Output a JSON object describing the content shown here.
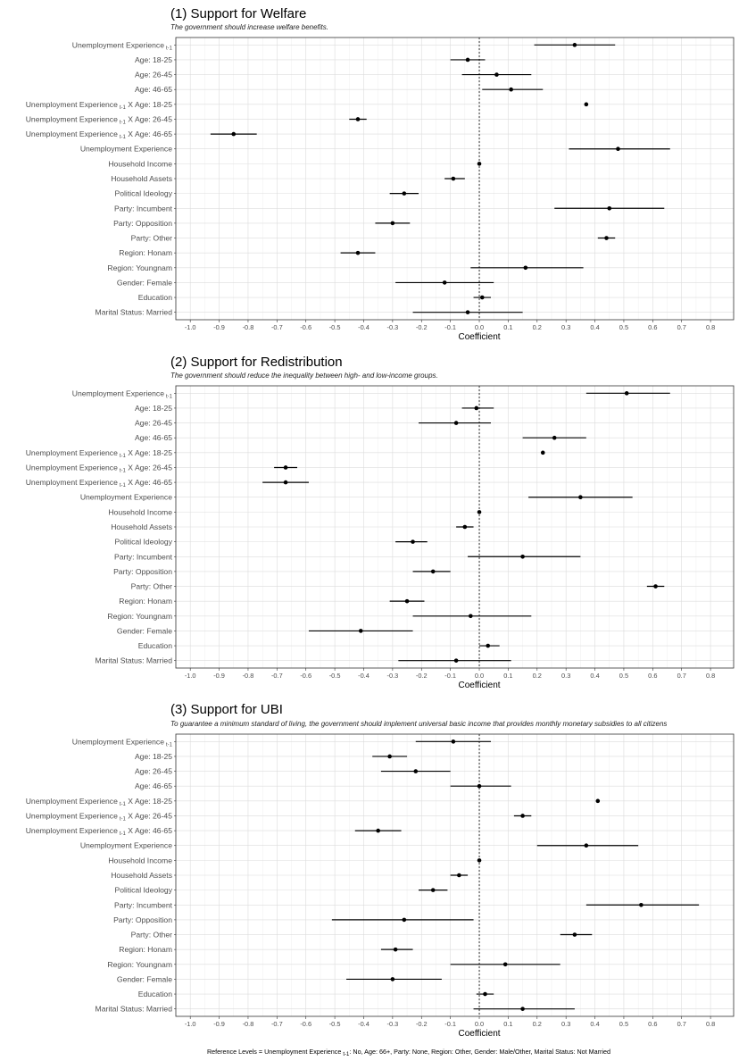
{
  "chart_data": [
    {
      "type": "scatter",
      "title": "(1) Support for Welfare",
      "subtitle": "The government should increase welfare benefits.",
      "xlabel": "Coefficient",
      "xlim": [
        -1.05,
        0.88
      ],
      "xticks": [
        -1.0,
        -0.9,
        -0.8,
        -0.7,
        -0.6,
        -0.5,
        -0.4,
        -0.3,
        -0.2,
        -0.1,
        0.0,
        0.1,
        0.2,
        0.3,
        0.4,
        0.5,
        0.6,
        0.7,
        0.8
      ],
      "xticklabels": [
        "-1.0",
        "-0.9",
        "-0.8",
        "-0.7",
        "-0.6",
        "-0.5",
        "-0.4",
        "-0.3",
        "-0.2",
        "-0.1",
        "0.0",
        "0.1",
        "0.2",
        "0.3",
        "0.4",
        "0.5",
        "0.6",
        "0.7",
        "0.8"
      ],
      "reference_line": 0,
      "grid": true,
      "terms": [
        {
          "label": "Unemployment Experience",
          "sub": "t-1",
          "suffix": "",
          "estimate": 0.33,
          "lower": 0.19,
          "upper": 0.47
        },
        {
          "label": "Age: 18-25",
          "sub": "",
          "suffix": "",
          "estimate": -0.04,
          "lower": -0.1,
          "upper": 0.02
        },
        {
          "label": "Age: 26-45",
          "sub": "",
          "suffix": "",
          "estimate": 0.06,
          "lower": -0.06,
          "upper": 0.18
        },
        {
          "label": "Age: 46-65",
          "sub": "",
          "suffix": "",
          "estimate": 0.11,
          "lower": 0.01,
          "upper": 0.22
        },
        {
          "label": "Unemployment Experience",
          "sub": "t-1",
          "suffix": " X Age: 18-25",
          "estimate": 0.37,
          "lower": 0.37,
          "upper": 0.37
        },
        {
          "label": "Unemployment Experience",
          "sub": "t-1",
          "suffix": " X Age: 26-45",
          "estimate": -0.42,
          "lower": -0.45,
          "upper": -0.39
        },
        {
          "label": "Unemployment Experience",
          "sub": "t-1",
          "suffix": " X Age: 46-65",
          "estimate": -0.85,
          "lower": -0.93,
          "upper": -0.77
        },
        {
          "label": "Unemployment Experience",
          "sub": "",
          "suffix": "",
          "estimate": 0.48,
          "lower": 0.31,
          "upper": 0.66
        },
        {
          "label": "Household Income",
          "sub": "",
          "suffix": "",
          "estimate": 0.0,
          "lower": 0.0,
          "upper": 0.0
        },
        {
          "label": "Household Assets",
          "sub": "",
          "suffix": "",
          "estimate": -0.09,
          "lower": -0.12,
          "upper": -0.05
        },
        {
          "label": "Political Ideology",
          "sub": "",
          "suffix": "",
          "estimate": -0.26,
          "lower": -0.31,
          "upper": -0.21
        },
        {
          "label": "Party: Incumbent",
          "sub": "",
          "suffix": "",
          "estimate": 0.45,
          "lower": 0.26,
          "upper": 0.64
        },
        {
          "label": "Party: Opposition",
          "sub": "",
          "suffix": "",
          "estimate": -0.3,
          "lower": -0.36,
          "upper": -0.24
        },
        {
          "label": "Party: Other",
          "sub": "",
          "suffix": "",
          "estimate": 0.44,
          "lower": 0.41,
          "upper": 0.47
        },
        {
          "label": "Region: Honam",
          "sub": "",
          "suffix": "",
          "estimate": -0.42,
          "lower": -0.48,
          "upper": -0.36
        },
        {
          "label": "Region: Youngnam",
          "sub": "",
          "suffix": "",
          "estimate": 0.16,
          "lower": -0.03,
          "upper": 0.36
        },
        {
          "label": "Gender: Female",
          "sub": "",
          "suffix": "",
          "estimate": -0.12,
          "lower": -0.29,
          "upper": 0.05
        },
        {
          "label": "Education",
          "sub": "",
          "suffix": "",
          "estimate": 0.01,
          "lower": -0.02,
          "upper": 0.04
        },
        {
          "label": "Marital Status: Married",
          "sub": "",
          "suffix": "",
          "estimate": -0.04,
          "lower": -0.23,
          "upper": 0.15
        }
      ]
    },
    {
      "type": "scatter",
      "title": "(2) Support for Redistribution",
      "subtitle": "The government should reduce the inequality between high- and low-income groups.",
      "xlabel": "Coefficient",
      "xlim": [
        -1.05,
        0.88
      ],
      "xticks": [
        -1.0,
        -0.9,
        -0.8,
        -0.7,
        -0.6,
        -0.5,
        -0.4,
        -0.3,
        -0.2,
        -0.1,
        0.0,
        0.1,
        0.2,
        0.3,
        0.4,
        0.5,
        0.6,
        0.7,
        0.8
      ],
      "xticklabels": [
        "-1.0",
        "-0.9",
        "-0.8",
        "-0.7",
        "-0.6",
        "-0.5",
        "-0.4",
        "-0.3",
        "-0.2",
        "-0.1",
        "0.0",
        "0.1",
        "0.2",
        "0.3",
        "0.4",
        "0.5",
        "0.6",
        "0.7",
        "0.8"
      ],
      "reference_line": 0,
      "grid": true,
      "terms": [
        {
          "label": "Unemployment Experience",
          "sub": "t-1",
          "suffix": "",
          "estimate": 0.51,
          "lower": 0.37,
          "upper": 0.66
        },
        {
          "label": "Age: 18-25",
          "sub": "",
          "suffix": "",
          "estimate": -0.01,
          "lower": -0.06,
          "upper": 0.05
        },
        {
          "label": "Age: 26-45",
          "sub": "",
          "suffix": "",
          "estimate": -0.08,
          "lower": -0.21,
          "upper": 0.04
        },
        {
          "label": "Age: 46-65",
          "sub": "",
          "suffix": "",
          "estimate": 0.26,
          "lower": 0.15,
          "upper": 0.37
        },
        {
          "label": "Unemployment Experience",
          "sub": "t-1",
          "suffix": " X Age: 18-25",
          "estimate": 0.22,
          "lower": 0.22,
          "upper": 0.22
        },
        {
          "label": "Unemployment Experience",
          "sub": "t-1",
          "suffix": " X Age: 26-45",
          "estimate": -0.67,
          "lower": -0.71,
          "upper": -0.63
        },
        {
          "label": "Unemployment Experience",
          "sub": "t-1",
          "suffix": " X Age: 46-65",
          "estimate": -0.67,
          "lower": -0.75,
          "upper": -0.59
        },
        {
          "label": "Unemployment Experience",
          "sub": "",
          "suffix": "",
          "estimate": 0.35,
          "lower": 0.17,
          "upper": 0.53
        },
        {
          "label": "Household Income",
          "sub": "",
          "suffix": "",
          "estimate": 0.0,
          "lower": 0.0,
          "upper": 0.0
        },
        {
          "label": "Household Assets",
          "sub": "",
          "suffix": "",
          "estimate": -0.05,
          "lower": -0.08,
          "upper": -0.02
        },
        {
          "label": "Political Ideology",
          "sub": "",
          "suffix": "",
          "estimate": -0.23,
          "lower": -0.29,
          "upper": -0.18
        },
        {
          "label": "Party: Incumbent",
          "sub": "",
          "suffix": "",
          "estimate": 0.15,
          "lower": -0.04,
          "upper": 0.35
        },
        {
          "label": "Party: Opposition",
          "sub": "",
          "suffix": "",
          "estimate": -0.16,
          "lower": -0.23,
          "upper": -0.1
        },
        {
          "label": "Party: Other",
          "sub": "",
          "suffix": "",
          "estimate": 0.61,
          "lower": 0.58,
          "upper": 0.64
        },
        {
          "label": "Region: Honam",
          "sub": "",
          "suffix": "",
          "estimate": -0.25,
          "lower": -0.31,
          "upper": -0.19
        },
        {
          "label": "Region: Youngnam",
          "sub": "",
          "suffix": "",
          "estimate": -0.03,
          "lower": -0.23,
          "upper": 0.18
        },
        {
          "label": "Gender: Female",
          "sub": "",
          "suffix": "",
          "estimate": -0.41,
          "lower": -0.59,
          "upper": -0.23
        },
        {
          "label": "Education",
          "sub": "",
          "suffix": "",
          "estimate": 0.03,
          "lower": 0.0,
          "upper": 0.07
        },
        {
          "label": "Marital Status: Married",
          "sub": "",
          "suffix": "",
          "estimate": -0.08,
          "lower": -0.28,
          "upper": 0.11
        }
      ]
    },
    {
      "type": "scatter",
      "title": "(3) Support for UBI",
      "subtitle": "To guarantee a minimum standard of living, the government should implement universal basic income that provides monthly monetary subsidies to all citizens",
      "xlabel": "Coefficient",
      "xlim": [
        -1.05,
        0.88
      ],
      "xticks": [
        -1.0,
        -0.9,
        -0.8,
        -0.7,
        -0.6,
        -0.5,
        -0.4,
        -0.3,
        -0.2,
        -0.1,
        0.0,
        0.1,
        0.2,
        0.3,
        0.4,
        0.5,
        0.6,
        0.7,
        0.8
      ],
      "xticklabels": [
        "-1.0",
        "-0.9",
        "-0.8",
        "-0.7",
        "-0.6",
        "-0.5",
        "-0.4",
        "-0.3",
        "-0.2",
        "-0.1",
        "0.0",
        "0.1",
        "0.2",
        "0.3",
        "0.4",
        "0.5",
        "0.6",
        "0.7",
        "0.8"
      ],
      "reference_line": 0,
      "grid": true,
      "terms": [
        {
          "label": "Unemployment Experience",
          "sub": "t-1",
          "suffix": "",
          "estimate": -0.09,
          "lower": -0.22,
          "upper": 0.04
        },
        {
          "label": "Age: 18-25",
          "sub": "",
          "suffix": "",
          "estimate": -0.31,
          "lower": -0.37,
          "upper": -0.25
        },
        {
          "label": "Age: 26-45",
          "sub": "",
          "suffix": "",
          "estimate": -0.22,
          "lower": -0.34,
          "upper": -0.1
        },
        {
          "label": "Age: 46-65",
          "sub": "",
          "suffix": "",
          "estimate": 0.0,
          "lower": -0.1,
          "upper": 0.11
        },
        {
          "label": "Unemployment Experience",
          "sub": "t-1",
          "suffix": " X Age: 18-25",
          "estimate": 0.41,
          "lower": 0.41,
          "upper": 0.41
        },
        {
          "label": "Unemployment Experience",
          "sub": "t-1",
          "suffix": " X Age: 26-45",
          "estimate": 0.15,
          "lower": 0.12,
          "upper": 0.18
        },
        {
          "label": "Unemployment Experience",
          "sub": "t-1",
          "suffix": " X Age: 46-65",
          "estimate": -0.35,
          "lower": -0.43,
          "upper": -0.27
        },
        {
          "label": "Unemployment Experience",
          "sub": "",
          "suffix": "",
          "estimate": 0.37,
          "lower": 0.2,
          "upper": 0.55
        },
        {
          "label": "Household Income",
          "sub": "",
          "suffix": "",
          "estimate": 0.0,
          "lower": 0.0,
          "upper": 0.0
        },
        {
          "label": "Household Assets",
          "sub": "",
          "suffix": "",
          "estimate": -0.07,
          "lower": -0.1,
          "upper": -0.04
        },
        {
          "label": "Political Ideology",
          "sub": "",
          "suffix": "",
          "estimate": -0.16,
          "lower": -0.21,
          "upper": -0.11
        },
        {
          "label": "Party: Incumbent",
          "sub": "",
          "suffix": "",
          "estimate": 0.56,
          "lower": 0.37,
          "upper": 0.76
        },
        {
          "label": "Party: Opposition",
          "sub": "",
          "suffix": "",
          "estimate": -0.26,
          "lower": -0.51,
          "upper": -0.02
        },
        {
          "label": "Party: Other",
          "sub": "",
          "suffix": "",
          "estimate": 0.33,
          "lower": 0.28,
          "upper": 0.39
        },
        {
          "label": "Region: Honam",
          "sub": "",
          "suffix": "",
          "estimate": -0.29,
          "lower": -0.34,
          "upper": -0.23
        },
        {
          "label": "Region: Youngnam",
          "sub": "",
          "suffix": "",
          "estimate": 0.09,
          "lower": -0.1,
          "upper": 0.28
        },
        {
          "label": "Gender: Female",
          "sub": "",
          "suffix": "",
          "estimate": -0.3,
          "lower": -0.46,
          "upper": -0.13
        },
        {
          "label": "Education",
          "sub": "",
          "suffix": "",
          "estimate": 0.02,
          "lower": -0.01,
          "upper": 0.05
        },
        {
          "label": "Marital Status: Married",
          "sub": "",
          "suffix": "",
          "estimate": 0.15,
          "lower": -0.02,
          "upper": 0.33
        }
      ]
    }
  ],
  "footnote": {
    "before": "Reference Levels = Unemployment Experience ",
    "sub": "t-1",
    "after": ": No, Age: 66+, Party: None, Region: Other, Gender: Male/Other, Marital Status: Not Married"
  }
}
